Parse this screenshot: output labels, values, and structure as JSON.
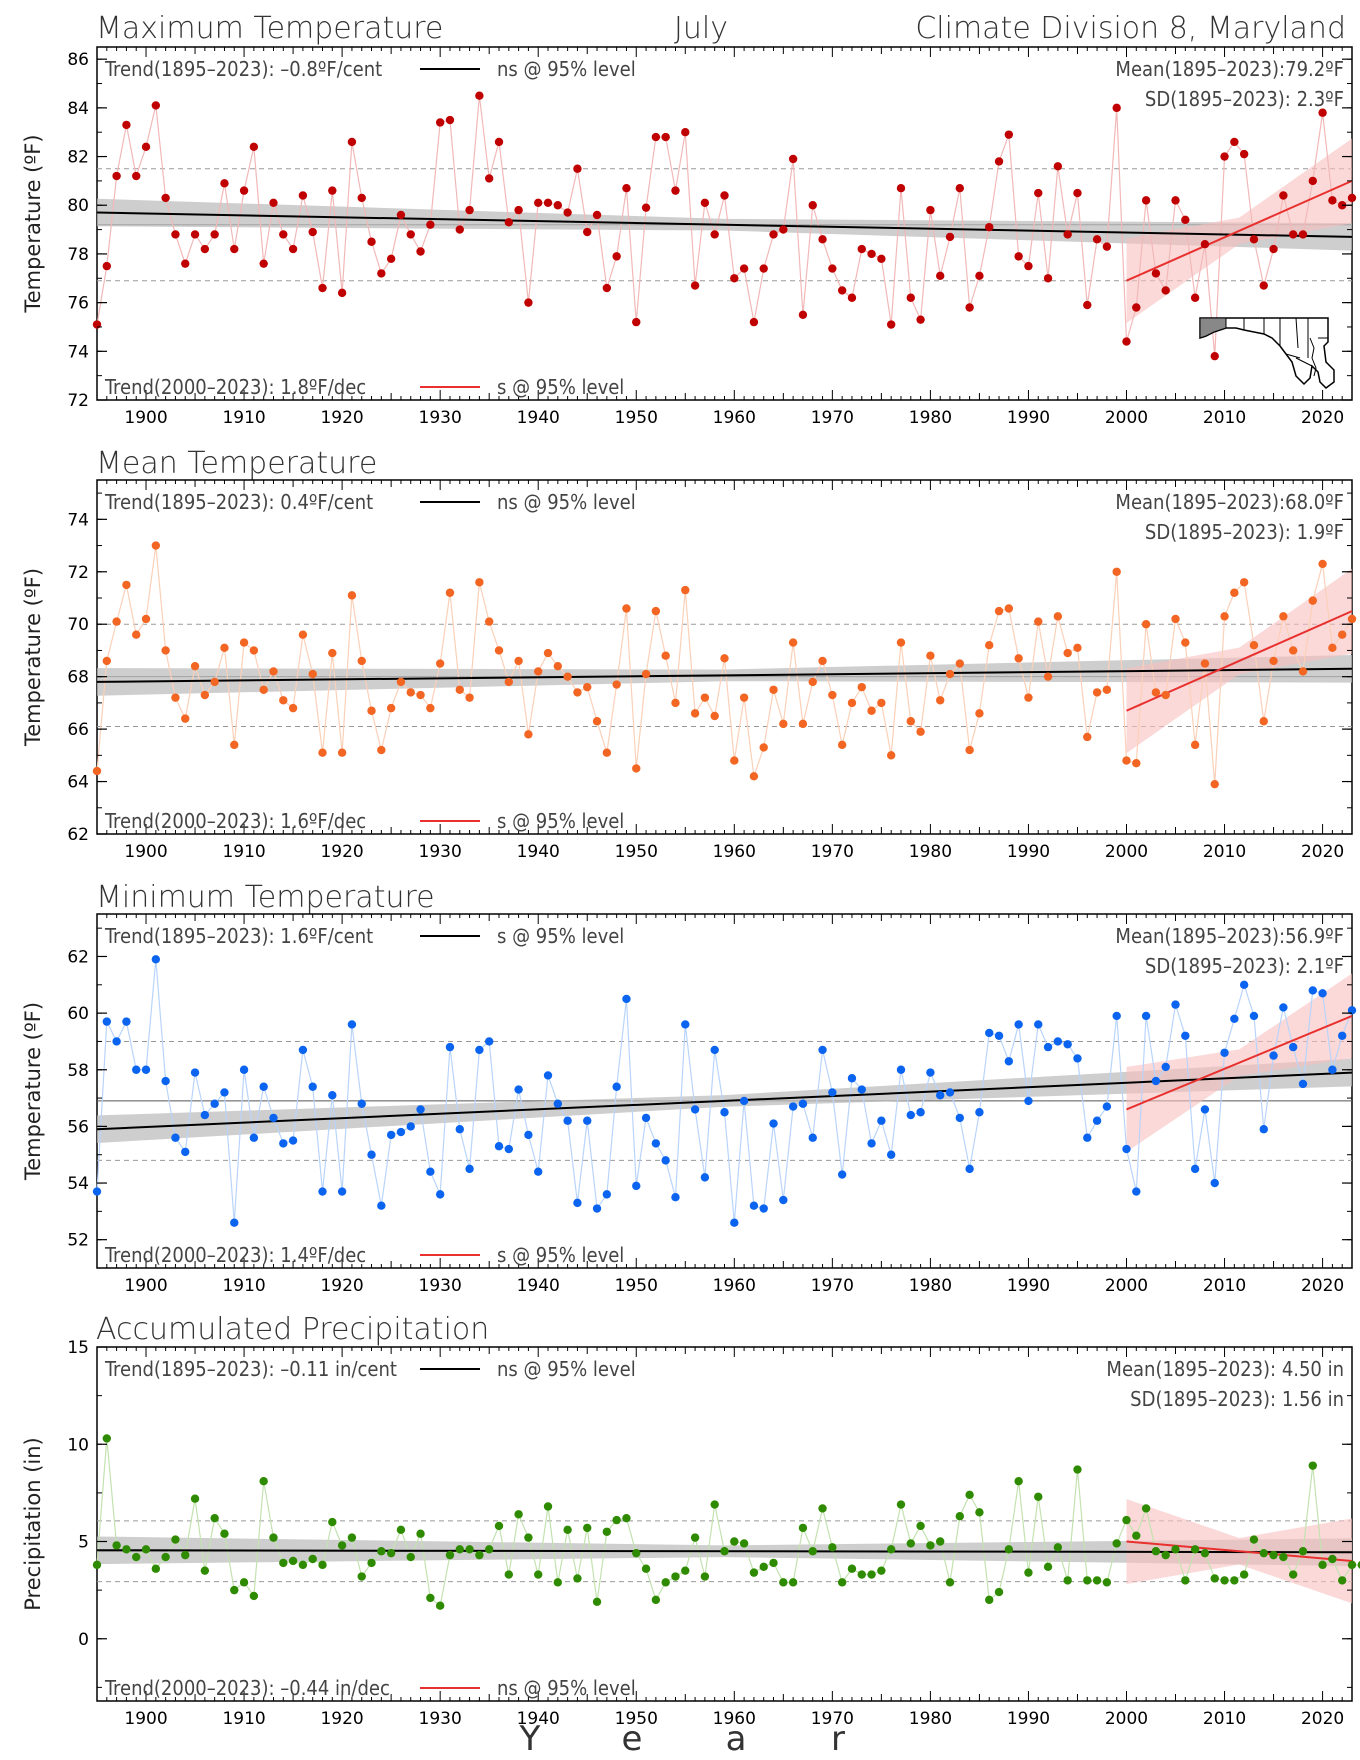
{
  "header": {
    "left_title": "Maximum Temperature",
    "center_title": "July",
    "right_title": "Climate Division 8, Maryland"
  },
  "x_axis_label_letters": [
    "Y",
    "e",
    "a",
    "r"
  ],
  "x_ticks": [
    "1900",
    "1910",
    "1920",
    "1930",
    "1940",
    "1950",
    "1960",
    "1970",
    "1980",
    "1990",
    "2000",
    "2010",
    "2020"
  ],
  "chart_data": [
    {
      "type": "line",
      "title": "Maximum Temperature",
      "ylabel": "Temperature (ºF)",
      "ylim": [
        72,
        86.5
      ],
      "yticks": [
        72,
        74,
        76,
        78,
        80,
        82,
        84,
        86
      ],
      "color": "#c00000",
      "light_color": "#f2b8b8",
      "trend_long": {
        "text": "Trend(1895–2023):  –0.8ºF/cent",
        "sig": "ns @ 95% level",
        "start": 79.7,
        "end": 78.7
      },
      "trend_short": {
        "text": "Trend(2000–2023):   1.8ºF/dec",
        "sig": "s @ 95% level",
        "start": 76.9,
        "end": 81.0
      },
      "mean_text": "Mean(1895–2023):79.2ºF",
      "sd_text": "SD(1895–2023): 2.3ºF",
      "mean": 79.2,
      "sd_upper": 81.5,
      "sd_lower": 76.9,
      "series": [
        {
          "x_start": 1895,
          "values": [
            75.1,
            77.5,
            81.2,
            83.3,
            81.2,
            82.4,
            84.1,
            80.3,
            78.8,
            77.6,
            78.8,
            78.2,
            78.8,
            80.9,
            78.2,
            80.6,
            82.4,
            77.6,
            80.1,
            78.8,
            78.2,
            80.4,
            78.9,
            76.6,
            80.6,
            76.4,
            82.6,
            80.3,
            78.5,
            77.2,
            77.8,
            79.6,
            78.8,
            78.1,
            79.2,
            83.4,
            83.5,
            79.0,
            79.8,
            84.5,
            81.1,
            82.6,
            79.3,
            79.8,
            76.0,
            80.1,
            80.1,
            80.0,
            79.7,
            81.5,
            78.9,
            79.6,
            76.6,
            77.9,
            80.7,
            75.2,
            79.9,
            82.8,
            82.8,
            80.6,
            83.0,
            76.7,
            80.1,
            78.8,
            80.4,
            77.0,
            77.4,
            75.2,
            77.4,
            78.8,
            79.0,
            81.9,
            75.5,
            80.0,
            78.6,
            77.4,
            76.5,
            76.2,
            78.2,
            78.0,
            77.8,
            75.1,
            80.7,
            76.2,
            75.3,
            79.8,
            77.1,
            78.7,
            80.7,
            75.8,
            77.1,
            79.1,
            81.8,
            82.9,
            77.9,
            77.5,
            80.5,
            77.0,
            81.6,
            78.8,
            80.5,
            75.9,
            78.6,
            78.3,
            84.0,
            74.4,
            75.8,
            80.2,
            77.2,
            76.5,
            80.2,
            79.4,
            76.2,
            78.4,
            73.8,
            82.0,
            82.6,
            82.1,
            78.6,
            76.7,
            78.2,
            80.4,
            78.8,
            78.8,
            81.0,
            83.8,
            80.2,
            80.0,
            80.3
          ]
        }
      ]
    },
    {
      "type": "line",
      "title": "Mean Temperature",
      "ylabel": "Temperature (ºF)",
      "ylim": [
        62,
        75.5
      ],
      "yticks": [
        62,
        64,
        66,
        68,
        70,
        72,
        74
      ],
      "color": "#f26522",
      "light_color": "#fbd0b8",
      "trend_long": {
        "text": "Trend(1895–2023):   0.4ºF/cent",
        "sig": "ns @ 95% level",
        "start": 67.8,
        "end": 68.3
      },
      "trend_short": {
        "text": "Trend(2000–2023):   1.6ºF/dec",
        "sig": "s @ 95% level",
        "start": 66.7,
        "end": 70.5
      },
      "mean_text": "Mean(1895–2023):68.0ºF",
      "sd_text": "SD(1895–2023): 1.9ºF",
      "mean": 68.0,
      "sd_upper": 70.0,
      "sd_lower": 66.1,
      "series": [
        {
          "x_start": 1895,
          "values": [
            64.4,
            68.6,
            70.1,
            71.5,
            69.6,
            70.2,
            73.0,
            69.0,
            67.2,
            66.4,
            68.4,
            67.3,
            67.8,
            69.1,
            65.4,
            69.3,
            69.0,
            67.5,
            68.2,
            67.1,
            66.8,
            69.6,
            68.1,
            65.1,
            68.9,
            65.1,
            71.1,
            68.6,
            66.7,
            65.2,
            66.8,
            67.8,
            67.4,
            67.3,
            66.8,
            68.5,
            71.2,
            67.5,
            67.2,
            71.6,
            70.1,
            69.0,
            67.8,
            68.6,
            65.8,
            68.2,
            68.9,
            68.4,
            68.0,
            67.4,
            67.6,
            66.3,
            65.1,
            67.7,
            70.6,
            64.5,
            68.1,
            70.5,
            68.8,
            67.0,
            71.3,
            66.6,
            67.2,
            66.5,
            68.7,
            64.8,
            67.2,
            64.2,
            65.3,
            67.5,
            66.2,
            69.3,
            66.2,
            67.8,
            68.6,
            67.3,
            65.4,
            67.0,
            67.6,
            66.7,
            67.0,
            65.0,
            69.3,
            66.3,
            65.9,
            68.8,
            67.1,
            68.1,
            68.5,
            65.2,
            66.6,
            69.2,
            70.5,
            70.6,
            68.7,
            67.2,
            70.1,
            68.0,
            70.3,
            68.9,
            69.1,
            65.7,
            67.4,
            67.5,
            72.0,
            64.8,
            64.7,
            70.0,
            67.4,
            67.3,
            70.2,
            69.3,
            65.4,
            68.5,
            63.9,
            70.3,
            71.2,
            71.6,
            69.2,
            66.3,
            68.6,
            70.3,
            69.0,
            68.2,
            70.9,
            72.3,
            69.1,
            69.6,
            70.2
          ]
        }
      ]
    },
    {
      "type": "line",
      "title": "Minimum Temperature",
      "ylabel": "Temperature (ºF)",
      "ylim": [
        51,
        63.5
      ],
      "yticks": [
        52,
        54,
        56,
        58,
        60,
        62
      ],
      "color": "#0a64f0",
      "light_color": "#b9d4fb",
      "trend_long": {
        "text": "Trend(1895–2023):   1.6ºF/cent",
        "sig": "s @ 95% level",
        "start": 55.9,
        "end": 57.9
      },
      "trend_short": {
        "text": "Trend(2000–2023):   1.4ºF/dec",
        "sig": "s @ 95% level",
        "start": 56.6,
        "end": 59.9
      },
      "mean_text": "Mean(1895–2023):56.9ºF",
      "sd_text": "SD(1895–2023): 2.1ºF",
      "mean": 56.9,
      "sd_upper": 59.0,
      "sd_lower": 54.8,
      "series": [
        {
          "x_start": 1895,
          "values": [
            53.7,
            59.7,
            59.0,
            59.7,
            58.0,
            58.0,
            61.9,
            57.6,
            55.6,
            55.1,
            57.9,
            56.4,
            56.8,
            57.2,
            52.6,
            58.0,
            55.6,
            57.4,
            56.3,
            55.4,
            55.5,
            58.7,
            57.4,
            53.7,
            57.1,
            53.7,
            59.6,
            56.8,
            55.0,
            53.2,
            55.7,
            55.8,
            56.0,
            56.6,
            54.4,
            53.6,
            58.8,
            55.9,
            54.5,
            58.7,
            59.0,
            55.3,
            55.2,
            57.3,
            55.7,
            54.4,
            57.8,
            56.8,
            56.2,
            53.3,
            56.2,
            53.1,
            53.6,
            57.4,
            60.5,
            53.9,
            56.3,
            55.4,
            54.8,
            53.5,
            59.6,
            56.6,
            54.2,
            58.7,
            56.5,
            52.6,
            56.9,
            53.2,
            53.1,
            56.1,
            53.4,
            56.7,
            56.8,
            55.6,
            58.7,
            57.2,
            54.3,
            57.7,
            57.3,
            55.4,
            56.2,
            55.0,
            58.0,
            56.4,
            56.5,
            57.9,
            57.1,
            57.2,
            56.3,
            54.5,
            56.5,
            59.3,
            59.2,
            58.3,
            59.6,
            56.9,
            59.6,
            58.8,
            59.0,
            58.9,
            58.4,
            55.6,
            56.2,
            56.7,
            59.9,
            55.2,
            53.7,
            59.9,
            57.6,
            58.1,
            60.3,
            59.2,
            54.5,
            56.6,
            54.0,
            58.6,
            59.8,
            61.0,
            59.9,
            55.9,
            58.5,
            60.2,
            58.8,
            57.5,
            60.8,
            60.7,
            58.0,
            59.2,
            60.1
          ]
        }
      ]
    },
    {
      "type": "line",
      "title": "Accumulated Precipitation",
      "ylabel": "Precipitation (in)",
      "ylim": [
        -3.2,
        15
      ],
      "yticks": [
        0,
        5,
        10,
        15
      ],
      "color": "#2e8b00",
      "light_color": "#c3e2b0",
      "trend_long": {
        "text": "Trend(1895–2023): –0.11 in/cent",
        "sig": "ns @ 95% level",
        "start": 4.55,
        "end": 4.45
      },
      "trend_short": {
        "text": "Trend(2000–2023): –0.44 in/dec",
        "sig": "ns @ 95% level",
        "start": 5.0,
        "end": 4.0
      },
      "mean_text": "Mean(1895–2023): 4.50 in",
      "sd_text": "SD(1895–2023): 1.56 in",
      "mean": 4.5,
      "sd_upper": 6.06,
      "sd_lower": 2.94,
      "series": [
        {
          "x_start": 1895,
          "values": [
            3.8,
            10.3,
            4.8,
            4.6,
            4.2,
            4.6,
            3.6,
            4.2,
            5.1,
            4.3,
            7.2,
            3.5,
            6.2,
            5.4,
            2.5,
            2.9,
            2.2,
            8.1,
            5.2,
            3.9,
            4.0,
            3.8,
            4.1,
            3.8,
            6.0,
            4.8,
            5.2,
            3.2,
            3.9,
            4.5,
            4.4,
            5.6,
            4.2,
            5.4,
            2.1,
            1.7,
            4.3,
            4.6,
            4.6,
            4.3,
            4.6,
            5.8,
            3.3,
            6.4,
            5.2,
            3.3,
            6.8,
            2.9,
            5.6,
            3.1,
            5.7,
            1.9,
            5.5,
            6.1,
            6.2,
            4.4,
            3.6,
            2.0,
            2.9,
            3.2,
            3.5,
            5.2,
            3.2,
            6.9,
            4.5,
            5.0,
            4.9,
            3.4,
            3.7,
            3.9,
            2.9,
            2.9,
            5.7,
            4.5,
            6.7,
            4.7,
            2.9,
            3.6,
            3.3,
            3.3,
            3.5,
            4.6,
            6.9,
            4.9,
            5.8,
            4.8,
            5.0,
            2.9,
            6.3,
            7.4,
            6.5,
            2.0,
            2.4,
            4.6,
            8.1,
            3.4,
            7.3,
            3.7,
            4.7,
            3.0,
            8.7,
            3.0,
            3.0,
            2.9,
            4.9,
            6.1,
            5.3,
            6.7,
            4.5,
            4.3,
            4.6,
            3.0,
            4.6,
            4.4,
            3.1,
            3.0,
            3.0,
            3.3,
            5.1,
            4.4,
            4.3,
            4.2,
            3.3,
            4.5,
            8.9,
            3.8,
            4.1,
            3.0,
            3.8,
            3.8
          ]
        }
      ]
    }
  ]
}
